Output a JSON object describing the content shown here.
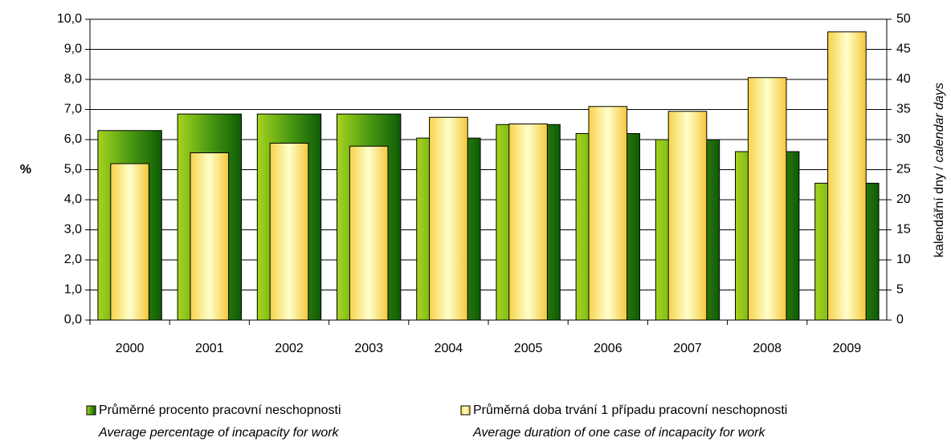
{
  "chart_data": {
    "type": "bar",
    "categories": [
      "2000",
      "2001",
      "2002",
      "2003",
      "2004",
      "2005",
      "2006",
      "2007",
      "2008",
      "2009"
    ],
    "series": [
      {
        "name": "Průměrné procento pracovní neschopnosti",
        "name_en": "Average percentage of incapacity for work",
        "color": "#339900",
        "values": [
          6.3,
          6.85,
          6.85,
          6.85,
          6.05,
          6.5,
          6.2,
          6.0,
          5.6,
          4.55
        ]
      },
      {
        "name": "Průměrná doba trvání 1 případu pracovní neschopnosti",
        "name_en": "Average duration of one case of incapacity for work",
        "color": "#ffe066",
        "axis": "y2",
        "values": [
          26.0,
          27.8,
          29.4,
          28.9,
          33.7,
          32.6,
          35.5,
          34.7,
          40.3,
          47.9
        ]
      }
    ],
    "ylabel": "%",
    "y2label": [
      "kalendářní dny / ",
      "calendar days"
    ],
    "ylim": [
      0,
      10
    ],
    "yticks": [
      {
        "value": 0,
        "label": "0,0"
      },
      {
        "value": 1,
        "label": "1,0"
      },
      {
        "value": 2,
        "label": "2,0"
      },
      {
        "value": 3,
        "label": "3,0"
      },
      {
        "value": 4,
        "label": "4,0"
      },
      {
        "value": 5,
        "label": "5,0"
      },
      {
        "value": 6,
        "label": "6,0"
      },
      {
        "value": 7,
        "label": "7,0"
      },
      {
        "value": 8,
        "label": "8,0"
      },
      {
        "value": 9,
        "label": "9,0"
      },
      {
        "value": 10,
        "label": "10,0"
      }
    ],
    "y2lim": [
      0,
      50
    ],
    "y2ticks": [
      0,
      5,
      10,
      15,
      20,
      25,
      30,
      35,
      40,
      45,
      50
    ],
    "grid": true
  }
}
